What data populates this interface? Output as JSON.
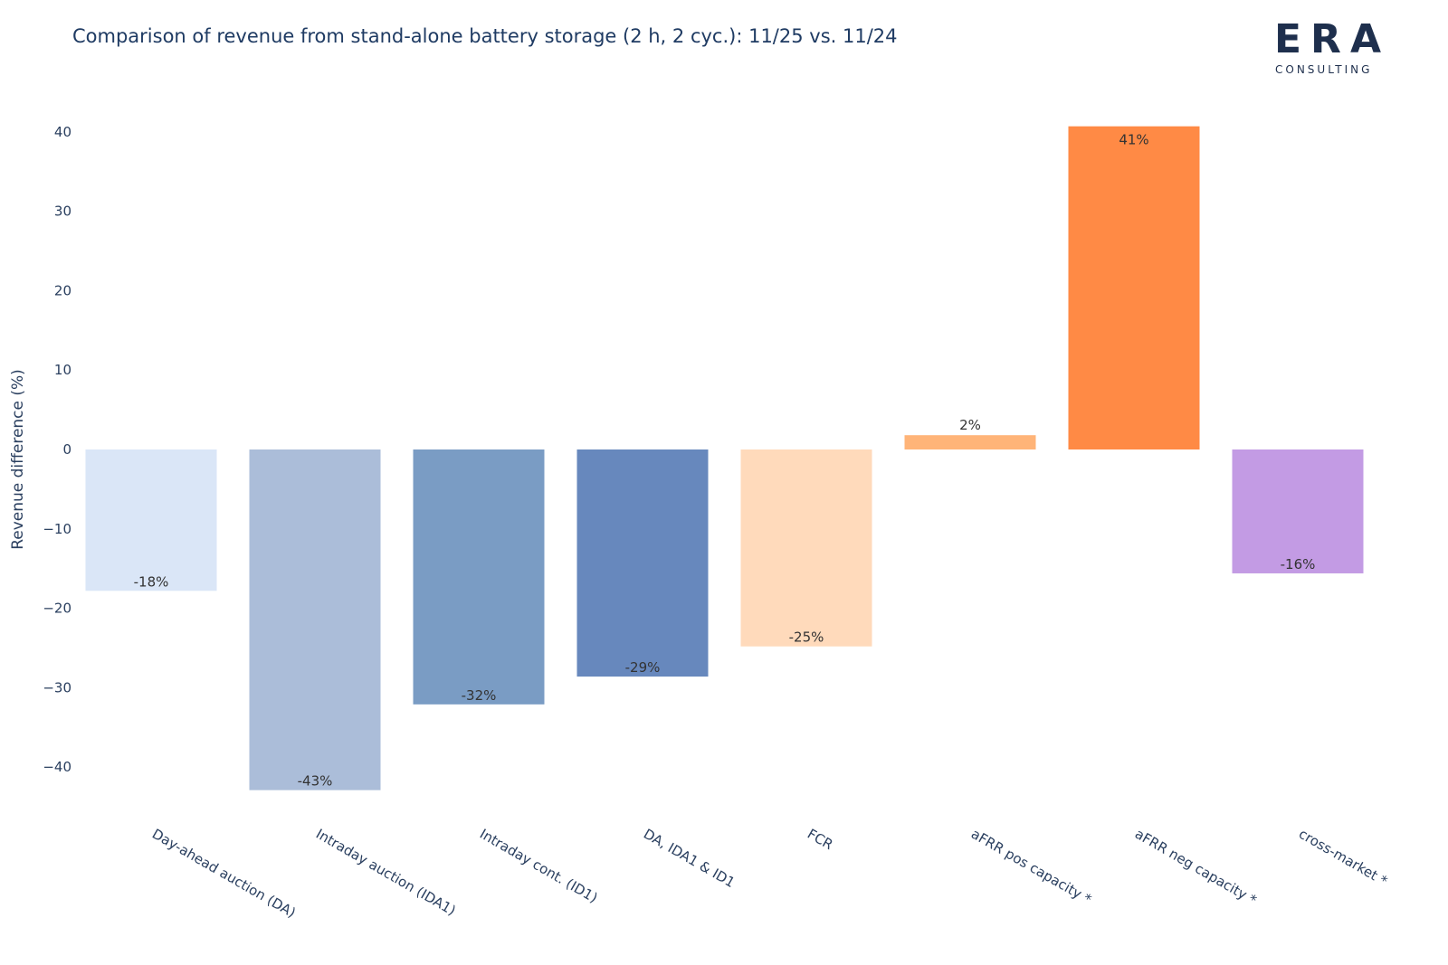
{
  "chart_title": "Comparison of revenue from stand-alone battery storage (2 h, 2 cyc.): 11/25 vs. 11/24",
  "logo": {
    "word": "ERA",
    "sub": "CONSULTING"
  },
  "chart_data": {
    "type": "bar",
    "title": "Comparison of revenue from stand-alone battery storage (2 h, 2 cyc.): 11/25 vs. 11/24",
    "xlabel": "",
    "ylabel": "Revenue difference (%)",
    "ylim": [
      -47,
      43
    ],
    "yticks": [
      40,
      30,
      20,
      10,
      0,
      -10,
      -20,
      -30,
      -40
    ],
    "ytick_labels": [
      "40",
      "30",
      "20",
      "10",
      "0",
      "−10",
      "−20",
      "−30",
      "−40"
    ],
    "grid": false,
    "categories": [
      "Day-ahead auction (DA)",
      "Intraday auction (IDA1)",
      "Intraday cont. (ID1)",
      "DA, IDA1 & ID1",
      "FCR",
      "aFRR pos capacity *",
      "aFRR neg capacity *",
      "cross-market *"
    ],
    "values": [
      -17.8,
      -42.9,
      -32.1,
      -28.6,
      -24.8,
      1.8,
      40.7,
      -15.6
    ],
    "data_labels": [
      "-18%",
      "-43%",
      "-32%",
      "-29%",
      "-25%",
      "2%",
      "41%",
      "-16%"
    ],
    "colors": [
      "#dae6f7",
      "#abbdd9",
      "#7a9cc4",
      "#6788bd",
      "#ffdabb",
      "#ffb478",
      "#ff8a45",
      "#c39be4"
    ]
  }
}
